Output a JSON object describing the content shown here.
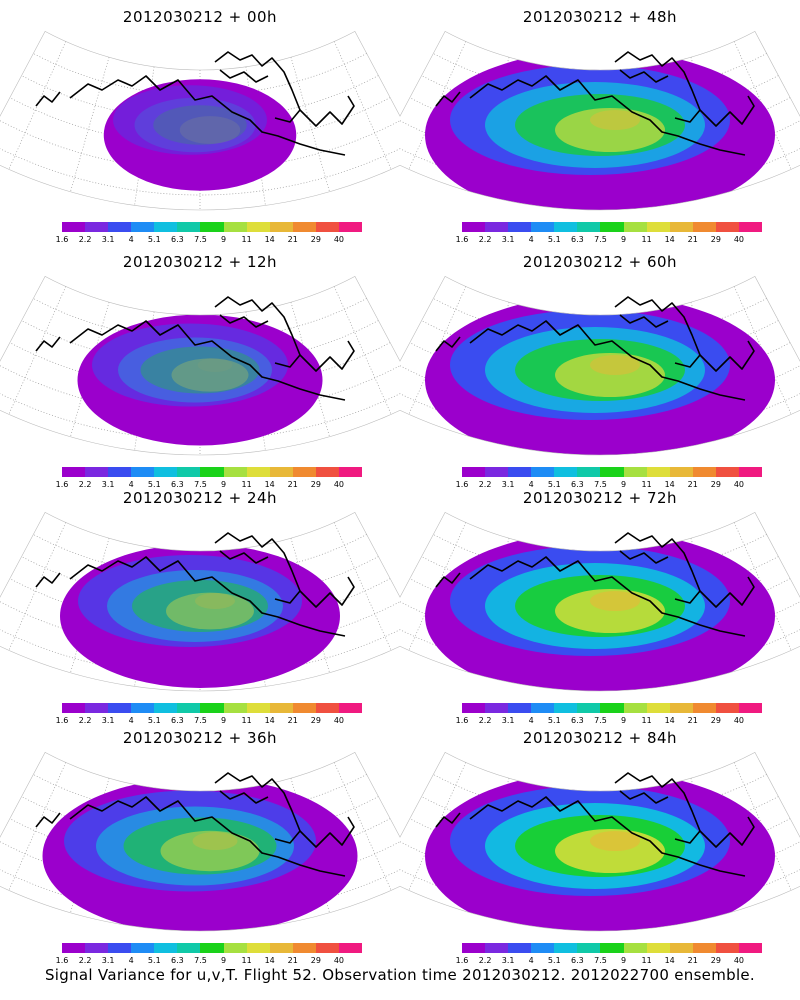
{
  "panels": [
    {
      "title": "2012030212 + 00h"
    },
    {
      "title": "2012030212 + 48h"
    },
    {
      "title": "2012030212 + 12h"
    },
    {
      "title": "2012030212 + 60h"
    },
    {
      "title": "2012030212 + 24h"
    },
    {
      "title": "2012030212 + 72h"
    },
    {
      "title": "2012030212 + 36h"
    },
    {
      "title": "2012030212 + 84h"
    }
  ],
  "colorbar": {
    "labels": [
      "1.6",
      "2.2",
      "3.1",
      "4",
      "5.1",
      "6.3",
      "7.5",
      "9",
      "11",
      "14",
      "21",
      "29",
      "40"
    ],
    "colors": [
      "#9b00cc",
      "#7a28e0",
      "#3a4cf0",
      "#1e8cf5",
      "#10bfe0",
      "#10c9a8",
      "#1ad21a",
      "#a6e040",
      "#dede3a",
      "#e8b838",
      "#f08a30",
      "#f05040",
      "#f01a80"
    ]
  },
  "footer": "Signal Variance for u,v,T. Flight 52. Observation time 2012030212. 2012022700 ensemble."
}
